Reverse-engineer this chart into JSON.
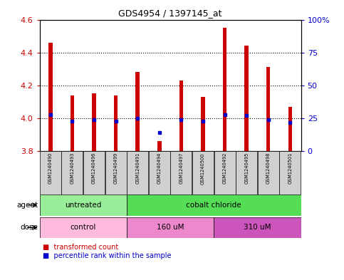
{
  "title": "GDS4954 / 1397145_at",
  "samples": [
    "GSM1240490",
    "GSM1240493",
    "GSM1240496",
    "GSM1240499",
    "GSM1240491",
    "GSM1240494",
    "GSM1240497",
    "GSM1240500",
    "GSM1240492",
    "GSM1240495",
    "GSM1240498",
    "GSM1240501"
  ],
  "transformed_count": [
    4.46,
    4.14,
    4.15,
    4.14,
    4.28,
    3.86,
    4.23,
    4.13,
    4.55,
    4.44,
    4.31,
    4.07
  ],
  "percentile_rank": [
    28,
    23,
    24,
    23,
    25,
    14,
    24,
    23,
    28,
    27,
    24,
    22
  ],
  "ymin": 3.8,
  "ymax": 4.6,
  "yticks_left": [
    3.8,
    4.0,
    4.2,
    4.4,
    4.6
  ],
  "yticks_right_vals": [
    0,
    25,
    50,
    75,
    100
  ],
  "yticks_right_labels": [
    "0",
    "25",
    "50",
    "75",
    "100%"
  ],
  "bar_color": "#cc0000",
  "dot_color": "#0000cc",
  "agent_groups": [
    {
      "label": "untreated",
      "start": 0,
      "end": 4,
      "color": "#99ee99"
    },
    {
      "label": "cobalt chloride",
      "start": 4,
      "end": 12,
      "color": "#55dd55"
    }
  ],
  "dose_groups": [
    {
      "label": "control",
      "start": 0,
      "end": 4,
      "color": "#ffbbdd"
    },
    {
      "label": "160 uM",
      "start": 4,
      "end": 8,
      "color": "#ee88cc"
    },
    {
      "label": "310 uM",
      "start": 8,
      "end": 12,
      "color": "#cc55bb"
    }
  ],
  "tick_label_color_left": "#cc0000",
  "tick_label_color_right": "#0000cc"
}
